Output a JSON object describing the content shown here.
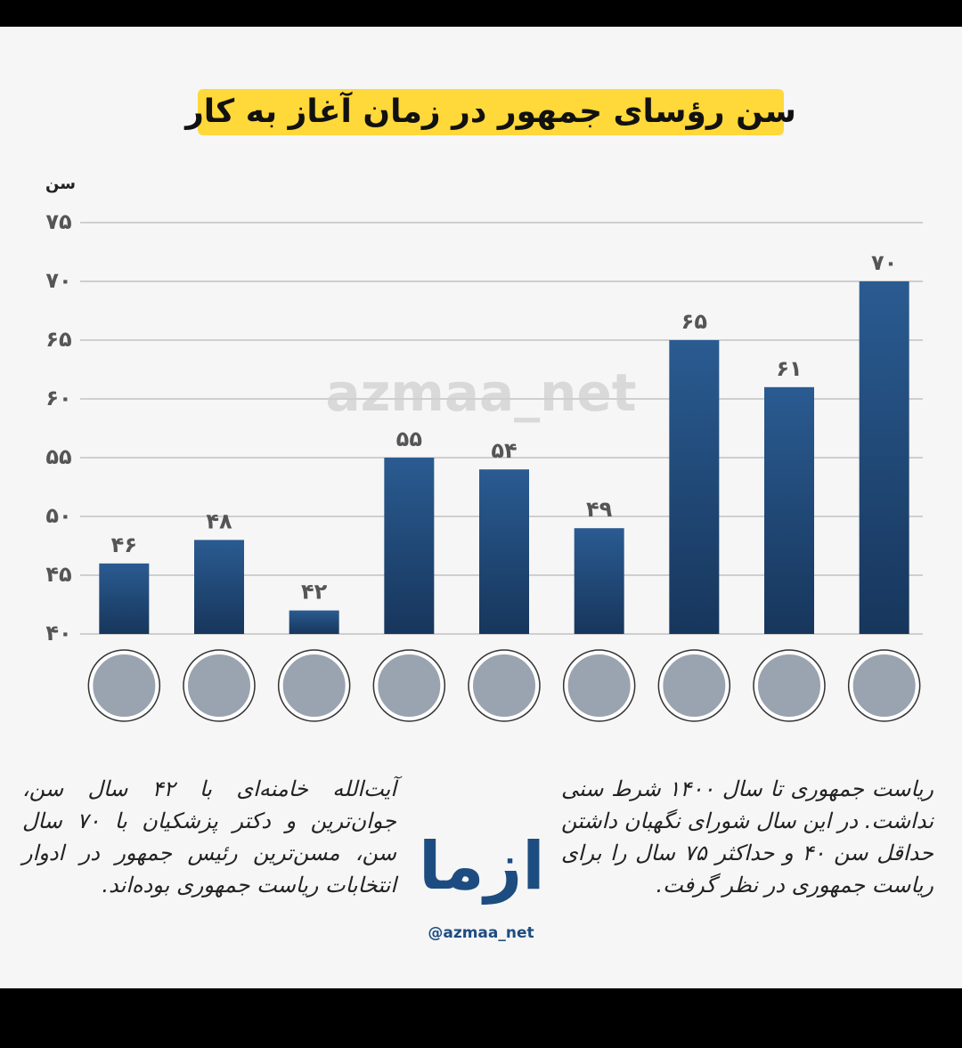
{
  "chart_data": {
    "type": "bar",
    "title": "سن رؤسای جمهور در زمان آغاز به کار",
    "y_label": "سن",
    "watermark": "azmaa_net",
    "categories": [
      null,
      null,
      null,
      null,
      null,
      null,
      null,
      null,
      null
    ],
    "values": [
      46,
      48,
      42,
      55,
      54,
      49,
      65,
      61,
      70
    ],
    "value_labels": [
      "۴۶",
      "۴۸",
      "۴۲",
      "۵۵",
      "۵۴",
      "۴۹",
      "۶۵",
      "۶۱",
      "۷۰"
    ],
    "color": "#1f4775",
    "ylim": [
      40,
      75
    ],
    "yticks": [
      {
        "value": 40,
        "label": "۴۰"
      },
      {
        "value": 45,
        "label": "۴۵"
      },
      {
        "value": 50,
        "label": "۵۰"
      },
      {
        "value": 55,
        "label": "۵۵"
      },
      {
        "value": 60,
        "label": "۶۰"
      },
      {
        "value": 65,
        "label": "۶۵"
      },
      {
        "value": 70,
        "label": "۷۰"
      },
      {
        "value": 75,
        "label": "۷۵"
      }
    ],
    "grid": true,
    "logo_text": "ازما",
    "handle": "@azmaa_net",
    "notes_left": "آیت‌الله خامنه‌ای با ۴۲ سال سن، جوان‌ترین و دکتر پزشکیان با ۷۰ سال سن، مسن‌ترین رئیس جمهور در ادوار انتخابات ریاست جمهوری بوده‌اند.",
    "notes_right": "ریاست جمهوری تا سال ۱۴۰۰ شرط سنی نداشت. در این سال شورای نگهبان داشتن حداقل سن ۴۰ و حداکثر ۷۵ سال را برای ریاست جمهوری در نظر گرفت."
  }
}
